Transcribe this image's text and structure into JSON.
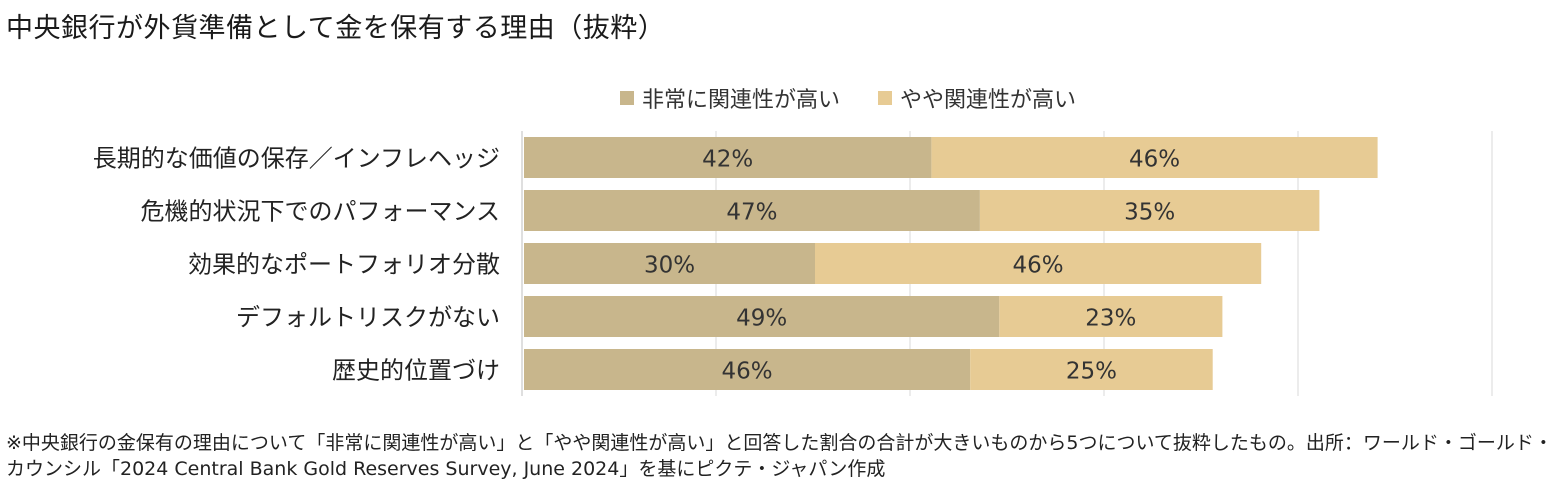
{
  "title": "中央銀行が外貨準備として金を保有する理由（抜粋）",
  "colors": {
    "very_high": "#c8b68c",
    "somewhat_high": "#e7cb94",
    "grid": "#d9d9d9"
  },
  "legend": [
    {
      "label": "非常に関連性が高い",
      "color": "#c8b68c"
    },
    {
      "label": "やや関連性が高い",
      "color": "#e7cb94"
    }
  ],
  "chart_data": {
    "type": "bar",
    "orientation": "horizontal",
    "stacked": true,
    "categories": [
      "長期的な価値の保存／インフレヘッジ",
      "危機的状況下でのパフォーマンス",
      "効果的なポートフォリオ分散",
      "デフォルトリスクがない",
      "歴史的位置づけ"
    ],
    "series": [
      {
        "name": "非常に関連性が高い",
        "values": [
          42,
          47,
          30,
          49,
          46
        ],
        "labels": [
          "42%",
          "47%",
          "30%",
          "49%",
          "46%"
        ]
      },
      {
        "name": "やや関連性が高い",
        "values": [
          46,
          35,
          46,
          23,
          25
        ],
        "labels": [
          "46%",
          "35%",
          "46%",
          "23%",
          "25%"
        ]
      }
    ],
    "xlim": [
      0,
      100
    ],
    "grid": true,
    "legend_position": "top"
  },
  "footnote": "※中央銀行の金保有の理由について「非常に関連性が高い」と「やや関連性が高い」と回答した割合の合計が大きいものから5つについて抜粋したもの。出所：ワールド・ゴールド・カウンシル「2024 Central Bank Gold Reserves Survey, June 2024」を基にピクテ・ジャパン作成"
}
